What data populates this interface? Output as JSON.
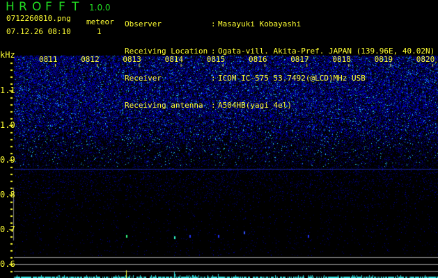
{
  "app": {
    "title_letters": [
      "H",
      "R",
      "O",
      "F",
      "F",
      "T"
    ],
    "version": "1.0.0"
  },
  "file": {
    "name": "0712260810.png",
    "datetime": "07.12.26 08:10"
  },
  "meteor": {
    "label": "meteor",
    "count": "1"
  },
  "info": [
    {
      "key": "Observer",
      "value": "Masayuki Kobayashi"
    },
    {
      "key": "Receiving Location",
      "value": "Ogata-vill. Akita-Pref. JAPAN (139.96E, 40.02N)"
    },
    {
      "key": "Receiver",
      "value": "ICOM IC-575 53.7492(@LCD)MHz USB"
    },
    {
      "key": "Receiving antenna",
      "value": "A504HB(yagi 4el)"
    }
  ],
  "axis": {
    "y_unit": "kHz",
    "y_labels": [
      "1.1",
      "1.0",
      "0.9",
      "0.8",
      "0.7",
      "0.6"
    ],
    "time_labels": [
      "0811",
      "0812",
      "0813",
      "0814",
      "0815",
      "0816",
      "0817",
      "0818",
      "0819",
      "0820"
    ]
  },
  "colors": {
    "text": "#ffff33",
    "title": "#22dd22",
    "noise": "#2233ff",
    "echo": "#33dddd",
    "grid": "#888888"
  }
}
